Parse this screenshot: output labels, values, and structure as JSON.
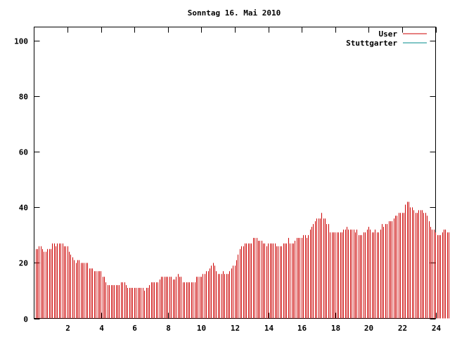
{
  "chart_data": {
    "type": "bar",
    "title": "Sonntag 16. Mai 2010",
    "xlabel": "",
    "ylabel": "",
    "xlim": [
      0,
      24
    ],
    "ylim": [
      0,
      105
    ],
    "x_ticks": [
      2,
      4,
      6,
      8,
      10,
      12,
      14,
      16,
      18,
      20,
      22,
      24
    ],
    "y_ticks": [
      0,
      20,
      40,
      60,
      80,
      100
    ],
    "grid": false,
    "legend_position": "top-right",
    "series": [
      {
        "name": "User",
        "color": "#cc0000",
        "x_start": 0,
        "x_step": 0.1,
        "values": [
          25,
          25,
          26,
          26,
          25,
          24,
          24,
          25,
          25,
          25,
          27,
          27,
          26,
          27,
          27,
          27,
          27,
          26,
          26,
          26,
          24,
          23,
          22,
          21,
          20,
          21,
          21,
          20,
          20,
          20,
          20,
          20,
          18,
          18,
          18,
          17,
          17,
          17,
          17,
          17,
          15,
          15,
          13,
          12,
          12,
          12,
          12,
          12,
          12,
          12,
          12,
          13,
          13,
          13,
          12,
          11,
          11,
          11,
          11,
          11,
          11,
          11,
          11,
          11,
          11,
          10,
          11,
          11,
          12,
          13,
          13,
          13,
          13,
          13,
          14,
          15,
          15,
          15,
          15,
          15,
          15,
          15,
          14,
          14,
          15,
          16,
          15,
          15,
          13,
          13,
          13,
          13,
          13,
          13,
          13,
          13,
          15,
          15,
          15,
          15,
          16,
          16,
          17,
          17,
          18,
          19,
          20,
          19,
          17,
          16,
          16,
          16,
          17,
          16,
          16,
          16,
          17,
          18,
          19,
          19,
          21,
          23,
          25,
          26,
          26,
          27,
          27,
          27,
          27,
          27,
          29,
          29,
          29,
          28,
          28,
          28,
          27,
          27,
          26,
          27,
          27,
          27,
          27,
          27,
          26,
          26,
          26,
          26,
          27,
          27,
          27,
          29,
          27,
          27,
          27,
          28,
          29,
          29,
          29,
          29,
          30,
          30,
          29,
          30,
          32,
          33,
          34,
          35,
          36,
          36,
          36,
          38,
          36,
          36,
          34,
          34,
          31,
          31,
          31,
          31,
          31,
          31,
          31,
          31,
          32,
          32,
          33,
          32,
          32,
          32,
          32,
          31,
          32,
          30,
          30,
          30,
          31,
          31,
          32,
          33,
          32,
          31,
          31,
          32,
          31,
          31,
          32,
          34,
          33,
          34,
          34,
          35,
          35,
          35,
          36,
          37,
          37,
          38,
          38,
          38,
          38,
          41,
          42,
          42,
          40,
          40,
          39,
          38,
          38,
          39,
          39,
          39,
          38,
          38,
          37,
          35,
          33,
          32,
          32,
          31,
          30,
          30,
          30,
          31,
          32,
          32,
          31,
          31,
          30,
          31,
          32,
          33,
          31,
          31,
          31,
          31,
          31,
          31,
          31,
          30,
          30,
          30,
          29,
          28
        ]
      },
      {
        "name": "Stuttgarter",
        "color": "#008b8b",
        "values": []
      }
    ]
  }
}
